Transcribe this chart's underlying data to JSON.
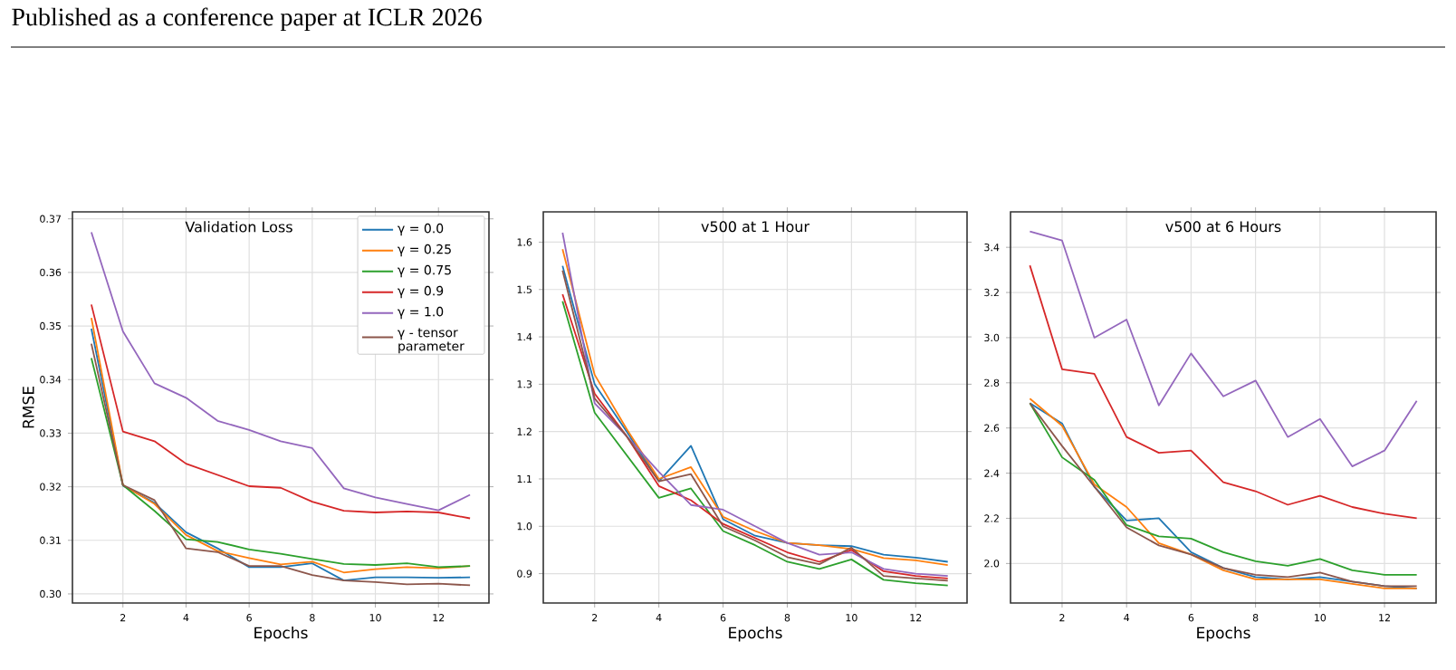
{
  "chart_data": [
    {
      "type": "line",
      "title": "Validation Loss",
      "xlabel": "Epochs",
      "ylabel": "RMSE",
      "annotations": [
        "Published as a conference paper at ICLR 2026"
      ],
      "x": [
        1,
        2,
        3,
        4,
        5,
        6,
        7,
        8,
        9,
        10,
        11,
        12,
        13
      ],
      "xlim": [
        0.4,
        13.6
      ],
      "xticks": [
        2,
        4,
        6,
        8,
        10,
        12
      ],
      "ylim": [
        0.2983,
        0.3713
      ],
      "yticks": [
        {
          "value": 0.3,
          "label": "0.30"
        },
        0.31,
        0.32,
        0.33,
        0.34,
        0.35,
        0.36,
        {
          "value": 0.37,
          "label": "0.37"
        }
      ],
      "grid": true,
      "legend": "top right",
      "series": [
        {
          "name": "γ = 0.0",
          "color": "#1f77b4",
          "values": [
            0.3495,
            0.3202,
            0.317,
            0.3115,
            0.3085,
            0.305,
            0.305,
            0.3057,
            0.3025,
            0.3031,
            0.3031,
            0.303,
            0.3031
          ]
        },
        {
          "name": "γ = 0.25",
          "color": "#ff7f0e",
          "values": [
            0.3515,
            0.3203,
            0.3168,
            0.311,
            0.308,
            0.3067,
            0.3055,
            0.306,
            0.304,
            0.3046,
            0.305,
            0.3048,
            0.3052
          ]
        },
        {
          "name": "γ = 0.75",
          "color": "#2ca02c",
          "values": [
            0.344,
            0.3203,
            0.3155,
            0.3102,
            0.3097,
            0.3083,
            0.3075,
            0.3065,
            0.3056,
            0.3054,
            0.3057,
            0.305,
            0.3052
          ]
        },
        {
          "name": "γ = 0.9",
          "color": "#d62728",
          "values": [
            0.354,
            0.3303,
            0.3285,
            0.3243,
            0.3222,
            0.3201,
            0.3198,
            0.3172,
            0.3155,
            0.3152,
            0.3154,
            0.3152,
            0.3141
          ]
        },
        {
          "name": "γ = 1.0",
          "color": "#9467bd",
          "values": [
            0.3675,
            0.349,
            0.3393,
            0.3366,
            0.3323,
            0.3306,
            0.3285,
            0.3272,
            0.3197,
            0.318,
            0.3168,
            0.3156,
            0.3185
          ]
        },
        {
          "name": "γ - tensor parameter",
          "color": "#8c564b",
          "values": [
            0.3467,
            0.3203,
            0.3175,
            0.3085,
            0.3078,
            0.3052,
            0.3052,
            0.3035,
            0.3025,
            0.3022,
            0.3018,
            0.3019,
            0.3016
          ]
        }
      ]
    },
    {
      "type": "line",
      "title": "v500 at 1 Hour",
      "xlabel": "Epochs",
      "x": [
        1,
        2,
        3,
        4,
        5,
        6,
        7,
        8,
        9,
        10,
        11,
        12,
        13
      ],
      "xlim": [
        0.4,
        13.6
      ],
      "xticks": [
        2,
        4,
        6,
        8,
        10,
        12
      ],
      "ylim": [
        0.838,
        1.664
      ],
      "yticks": [
        0.9,
        {
          "value": 1.0,
          "label": "1.0"
        },
        1.1,
        1.2,
        1.3,
        1.4,
        1.5,
        1.6
      ],
      "grid": true,
      "series": [
        {
          "color": "#1f77b4",
          "values": [
            1.55,
            1.3,
            1.2,
            1.095,
            1.17,
            1.015,
            0.98,
            0.965,
            0.96,
            0.958,
            0.94,
            0.934,
            0.925
          ]
        },
        {
          "color": "#ff7f0e",
          "values": [
            1.585,
            1.32,
            1.205,
            1.1,
            1.125,
            1.02,
            0.99,
            0.965,
            0.96,
            0.952,
            0.933,
            0.928,
            0.918
          ]
        },
        {
          "color": "#2ca02c",
          "values": [
            1.475,
            1.24,
            1.15,
            1.06,
            1.08,
            0.99,
            0.96,
            0.925,
            0.91,
            0.93,
            0.887,
            0.88,
            0.875
          ]
        },
        {
          "color": "#d62728",
          "values": [
            1.49,
            1.28,
            1.19,
            1.085,
            1.055,
            1.005,
            0.975,
            0.945,
            0.925,
            0.95,
            0.905,
            0.895,
            0.89
          ]
        },
        {
          "color": "#9467bd",
          "values": [
            1.62,
            1.26,
            1.19,
            1.115,
            1.045,
            1.035,
            1.0,
            0.965,
            0.94,
            0.945,
            0.91,
            0.9,
            0.895
          ]
        },
        {
          "color": "#8c564b",
          "values": [
            1.54,
            1.27,
            1.19,
            1.095,
            1.11,
            1.0,
            0.97,
            0.935,
            0.92,
            0.955,
            0.895,
            0.89,
            0.885
          ]
        }
      ]
    },
    {
      "type": "line",
      "title": "v500 at 6 Hours",
      "xlabel": "Epochs",
      "x": [
        1,
        2,
        3,
        4,
        5,
        6,
        7,
        8,
        9,
        10,
        11,
        12,
        13
      ],
      "xlim": [
        0.4,
        13.6
      ],
      "xticks": [
        2,
        4,
        6,
        8,
        10,
        12
      ],
      "ylim": [
        1.825,
        3.557
      ],
      "yticks": [
        {
          "value": 2.0,
          "label": "2.0"
        },
        2.2,
        2.4,
        2.6,
        2.8,
        {
          "value": 3.0,
          "label": "3.0"
        },
        3.2,
        3.4
      ],
      "grid": true,
      "series": [
        {
          "color": "#1f77b4",
          "values": [
            2.71,
            2.62,
            2.34,
            2.19,
            2.2,
            2.05,
            1.98,
            1.94,
            1.93,
            1.94,
            1.92,
            1.9,
            1.89
          ]
        },
        {
          "color": "#ff7f0e",
          "values": [
            2.73,
            2.61,
            2.35,
            2.25,
            2.09,
            2.04,
            1.97,
            1.93,
            1.93,
            1.93,
            1.91,
            1.89,
            1.89
          ]
        },
        {
          "color": "#2ca02c",
          "values": [
            2.71,
            2.47,
            2.37,
            2.17,
            2.12,
            2.11,
            2.05,
            2.01,
            1.99,
            2.02,
            1.97,
            1.95,
            1.95
          ]
        },
        {
          "color": "#d62728",
          "values": [
            3.32,
            2.86,
            2.84,
            2.56,
            2.49,
            2.5,
            2.36,
            2.32,
            2.26,
            2.3,
            2.25,
            2.22,
            2.2
          ]
        },
        {
          "color": "#9467bd",
          "values": [
            3.47,
            3.43,
            3.0,
            3.08,
            2.7,
            2.93,
            2.74,
            2.81,
            2.56,
            2.64,
            2.43,
            2.5,
            2.72
          ]
        },
        {
          "color": "#8c564b",
          "values": [
            2.71,
            2.52,
            2.34,
            2.16,
            2.08,
            2.04,
            1.98,
            1.95,
            1.94,
            1.96,
            1.92,
            1.9,
            1.9
          ]
        }
      ]
    }
  ]
}
